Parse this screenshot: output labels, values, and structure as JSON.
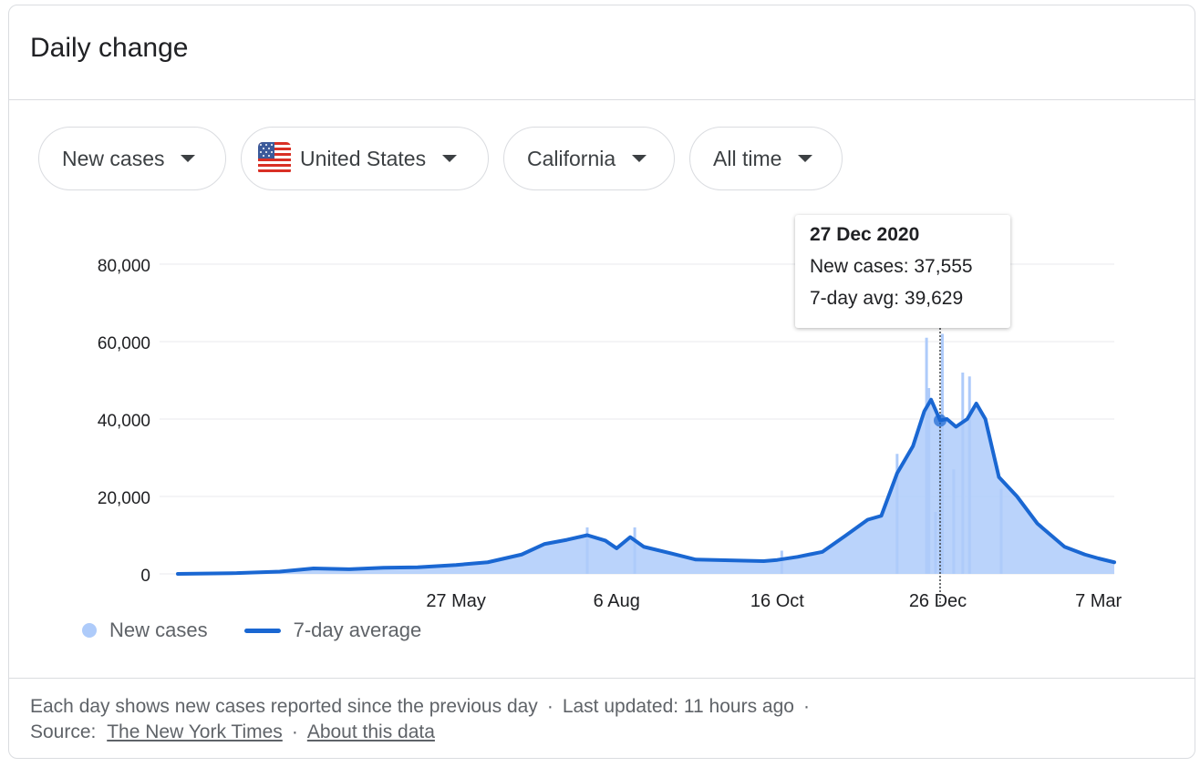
{
  "header": {
    "title": "Daily change"
  },
  "filters": {
    "metric": "New cases",
    "country": "United States",
    "region": "California",
    "range": "All time"
  },
  "tooltip": {
    "date": "27 Dec 2020",
    "new_cases": "New cases: 37,555",
    "avg": "7-day avg: 39,629"
  },
  "legend": {
    "bars": "New cases",
    "line": "7-day average"
  },
  "footer": {
    "note": "Each day shows new cases reported since the previous day",
    "updated": "Last updated: 11 hours ago",
    "source_label": "Source:",
    "source_link": "The New York Times",
    "about_link": "About this data",
    "separator": "·"
  },
  "colors": {
    "bars": "#aecbfa",
    "line": "#1a67d2",
    "grid": "#e8eaed"
  },
  "chart_data": {
    "type": "bar",
    "title": "",
    "ylim": [
      0,
      80000
    ],
    "y_ticks": [
      0,
      20000,
      40000,
      60000,
      80000
    ],
    "y_tick_labels": [
      "0",
      "20,000",
      "40,000",
      "60,000",
      "80,000"
    ],
    "x_range": [
      "2020-01-25",
      "2021-03-14"
    ],
    "x_ticks": [
      {
        "date": "2020-05-27",
        "label": "27 May"
      },
      {
        "date": "2020-08-06",
        "label": "6 Aug"
      },
      {
        "date": "2020-10-16",
        "label": "16 Oct"
      },
      {
        "date": "2020-12-26",
        "label": "26 Dec"
      },
      {
        "date": "2021-03-07",
        "label": "7 Mar"
      }
    ],
    "series": [
      {
        "name": "7-day average",
        "style": "line",
        "points": [
          [
            "2020-01-25",
            0
          ],
          [
            "2020-02-20",
            200
          ],
          [
            "2020-03-10",
            600
          ],
          [
            "2020-03-25",
            1400
          ],
          [
            "2020-04-10",
            1200
          ],
          [
            "2020-04-25",
            1600
          ],
          [
            "2020-05-10",
            1700
          ],
          [
            "2020-05-27",
            2300
          ],
          [
            "2020-06-10",
            3000
          ],
          [
            "2020-06-25",
            5000
          ],
          [
            "2020-07-05",
            7700
          ],
          [
            "2020-07-15",
            8800
          ],
          [
            "2020-07-24",
            10000
          ],
          [
            "2020-08-01",
            8600
          ],
          [
            "2020-08-06",
            6600
          ],
          [
            "2020-08-12",
            9500
          ],
          [
            "2020-08-18",
            7000
          ],
          [
            "2020-08-30",
            5300
          ],
          [
            "2020-09-10",
            3700
          ],
          [
            "2020-09-25",
            3500
          ],
          [
            "2020-10-10",
            3300
          ],
          [
            "2020-10-16",
            3600
          ],
          [
            "2020-10-25",
            4400
          ],
          [
            "2020-11-05",
            5700
          ],
          [
            "2020-11-15",
            9800
          ],
          [
            "2020-11-25",
            14000
          ],
          [
            "2020-12-01",
            15000
          ],
          [
            "2020-12-08",
            26000
          ],
          [
            "2020-12-15",
            33000
          ],
          [
            "2020-12-20",
            42000
          ],
          [
            "2020-12-23",
            45000
          ],
          [
            "2020-12-27",
            39629
          ],
          [
            "2020-12-30",
            40000
          ],
          [
            "2021-01-03",
            38000
          ],
          [
            "2021-01-08",
            40000
          ],
          [
            "2021-01-12",
            44000
          ],
          [
            "2021-01-16",
            40000
          ],
          [
            "2021-01-22",
            25000
          ],
          [
            "2021-01-30",
            20000
          ],
          [
            "2021-02-08",
            13000
          ],
          [
            "2021-02-20",
            7000
          ],
          [
            "2021-03-01",
            5000
          ],
          [
            "2021-03-07",
            4000
          ],
          [
            "2021-03-14",
            3000
          ]
        ]
      },
      {
        "name": "New cases",
        "style": "bars",
        "points": [
          [
            "2020-07-24",
            12000
          ],
          [
            "2020-08-14",
            12000
          ],
          [
            "2020-10-18",
            6000
          ],
          [
            "2020-12-08",
            31000
          ],
          [
            "2020-12-21",
            61000
          ],
          [
            "2020-12-22",
            48000
          ],
          [
            "2020-12-25",
            16000
          ],
          [
            "2020-12-27",
            37555
          ],
          [
            "2020-12-28",
            62000
          ],
          [
            "2021-01-02",
            27000
          ],
          [
            "2021-01-06",
            52000
          ],
          [
            "2021-01-09",
            51000
          ],
          [
            "2021-01-23",
            22000
          ]
        ]
      }
    ]
  }
}
